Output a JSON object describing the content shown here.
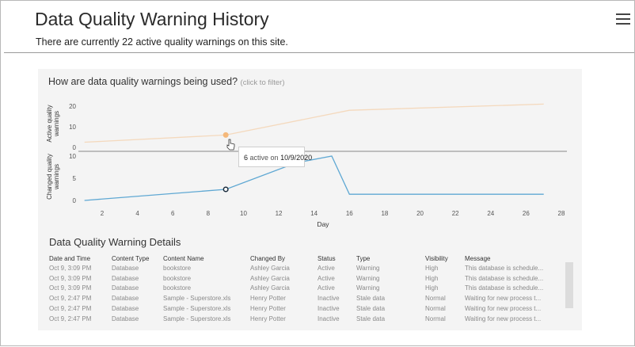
{
  "header": {
    "title": "Data Quality Warning History",
    "subtitle": "There are currently 22 active quality warnings on this site."
  },
  "chart_section": {
    "question": "How are data quality warnings being used?",
    "hint": "(click to filter)"
  },
  "tooltip": {
    "value": "6",
    "text": "active on",
    "date": "10/9/2020"
  },
  "chart_data": [
    {
      "type": "line",
      "title": "Active quality warnings",
      "ylabel": "Active quality warnings",
      "xlabel": "Day",
      "ylim": [
        0,
        23
      ],
      "yticks": [
        "20",
        "10",
        "0"
      ],
      "color": "#f5b87a",
      "x": [
        1,
        9,
        16,
        27
      ],
      "values": [
        2.5,
        6,
        18,
        21
      ],
      "highlight": {
        "x": 9,
        "y": 6
      }
    },
    {
      "type": "line",
      "title": "Changed quality warnings",
      "ylabel": "Changed quality warnings",
      "xlabel": "Day",
      "ylim": [
        0,
        10
      ],
      "yticks": [
        "10",
        "5",
        "0"
      ],
      "color": "#5fa8d3",
      "x": [
        1,
        9,
        13,
        15,
        16,
        27
      ],
      "values": [
        0,
        2.5,
        8.5,
        10,
        1.4,
        1.4
      ],
      "highlight": {
        "x": 9,
        "y": 2.5
      },
      "xticks": [
        "2",
        "4",
        "6",
        "8",
        "10",
        "12",
        "14",
        "16",
        "18",
        "20",
        "22",
        "24",
        "26",
        "28"
      ]
    }
  ],
  "details": {
    "title": "Data Quality Warning Details",
    "columns": [
      "Date and Time",
      "Content Type",
      "Content Name",
      "Changed By",
      "Status",
      "Type",
      "Visibility",
      "Message"
    ],
    "rows": [
      [
        "Oct 9, 3:09 PM",
        "Database",
        "bookstore",
        "Ashley Garcia",
        "Active",
        "Warning",
        "High",
        "This database is schedule..."
      ],
      [
        "Oct 9, 3:09 PM",
        "Database",
        "bookstore",
        "Ashley Garcia",
        "Active",
        "Warning",
        "High",
        "This database is schedule..."
      ],
      [
        "Oct 9, 3:09 PM",
        "Database",
        "bookstore",
        "Ashley Garcia",
        "Active",
        "Warning",
        "High",
        "This database is schedule..."
      ],
      [
        "Oct 9, 2:47 PM",
        "Database",
        "Sample - Superstore.xls",
        "Henry Potter",
        "Inactive",
        "Stale data",
        "Normal",
        "Waiting for new process t..."
      ],
      [
        "Oct 9, 2:47 PM",
        "Database",
        "Sample - Superstore.xls",
        "Henry Potter",
        "Inactive",
        "Stale data",
        "Normal",
        "Waiting for new process t..."
      ],
      [
        "Oct 9, 2:47 PM",
        "Database",
        "Sample - Superstore.xls",
        "Henry Potter",
        "Inactive",
        "Stale data",
        "Normal",
        "Waiting for new process t..."
      ]
    ]
  }
}
